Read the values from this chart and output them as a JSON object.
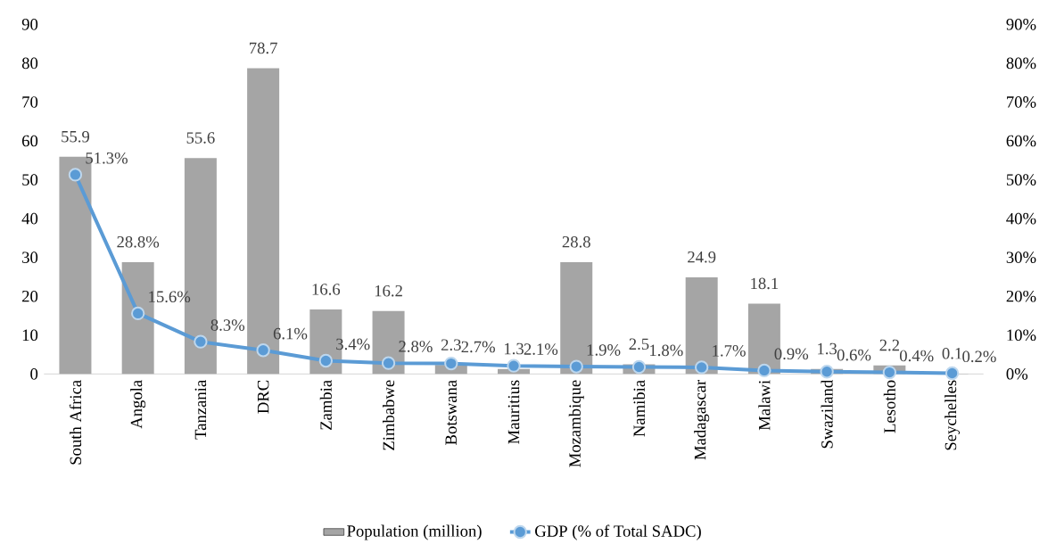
{
  "chart_data": {
    "type": "bar",
    "categories": [
      "South Africa",
      "Angola",
      "Tanzania",
      "DRC",
      "Zambia",
      "Zimbabwe",
      "Botswana",
      "Mauritius",
      "Mozambique",
      "Namibia",
      "Madagascar",
      "Malawi",
      "Swaziland",
      "Lesotho",
      "Seychelles"
    ],
    "series": [
      {
        "name": "Population (million)",
        "color": "#a5a5a5",
        "values": [
          55.9,
          28.8,
          55.6,
          78.7,
          16.6,
          16.2,
          2.3,
          1.3,
          28.8,
          2.5,
          24.9,
          18.1,
          1.3,
          2.2,
          0.1
        ],
        "value_labels": [
          "55.9",
          "28.8%",
          "55.6",
          "78.7",
          "16.6",
          "16.2",
          "2.3",
          "1.3",
          "28.8",
          "2.5",
          "24.9",
          "18.1",
          "1.3",
          "2.2",
          "0.1"
        ]
      },
      {
        "name": "GDP (% of Total SADC)",
        "type": "line",
        "axis": "y2",
        "color": "#5b9bd5",
        "values": [
          51.3,
          15.6,
          8.3,
          6.1,
          3.4,
          2.8,
          2.7,
          2.1,
          1.9,
          1.8,
          1.7,
          0.9,
          0.6,
          0.4,
          0.2
        ],
        "value_labels": [
          "51.3%",
          "15.6%",
          "8.3%",
          "6.1%",
          "3.4%",
          "2.8%",
          "2.7%",
          "2.1%",
          "1.9%",
          "1.8%",
          "1.7%",
          "0.9%",
          "0.6%",
          "0.4%",
          "0.2%"
        ]
      }
    ],
    "ylim": [
      0,
      90
    ],
    "yticks": [
      0,
      10,
      20,
      30,
      40,
      50,
      60,
      70,
      80,
      90
    ],
    "y2lim": [
      0,
      90
    ],
    "y2ticks": [
      {
        "value": 0,
        "label": "0%"
      },
      {
        "value": 10,
        "label": "10%"
      },
      {
        "value": 20,
        "label": "20%"
      },
      {
        "value": 30,
        "label": "30%"
      },
      {
        "value": 40,
        "label": "40%"
      },
      {
        "value": 50,
        "label": "50%"
      },
      {
        "value": 60,
        "label": "60%"
      },
      {
        "value": 70,
        "label": "70%"
      },
      {
        "value": 80,
        "label": "80%"
      },
      {
        "value": 90,
        "label": "90%"
      }
    ],
    "marker": "circle",
    "legend": "bottom"
  }
}
